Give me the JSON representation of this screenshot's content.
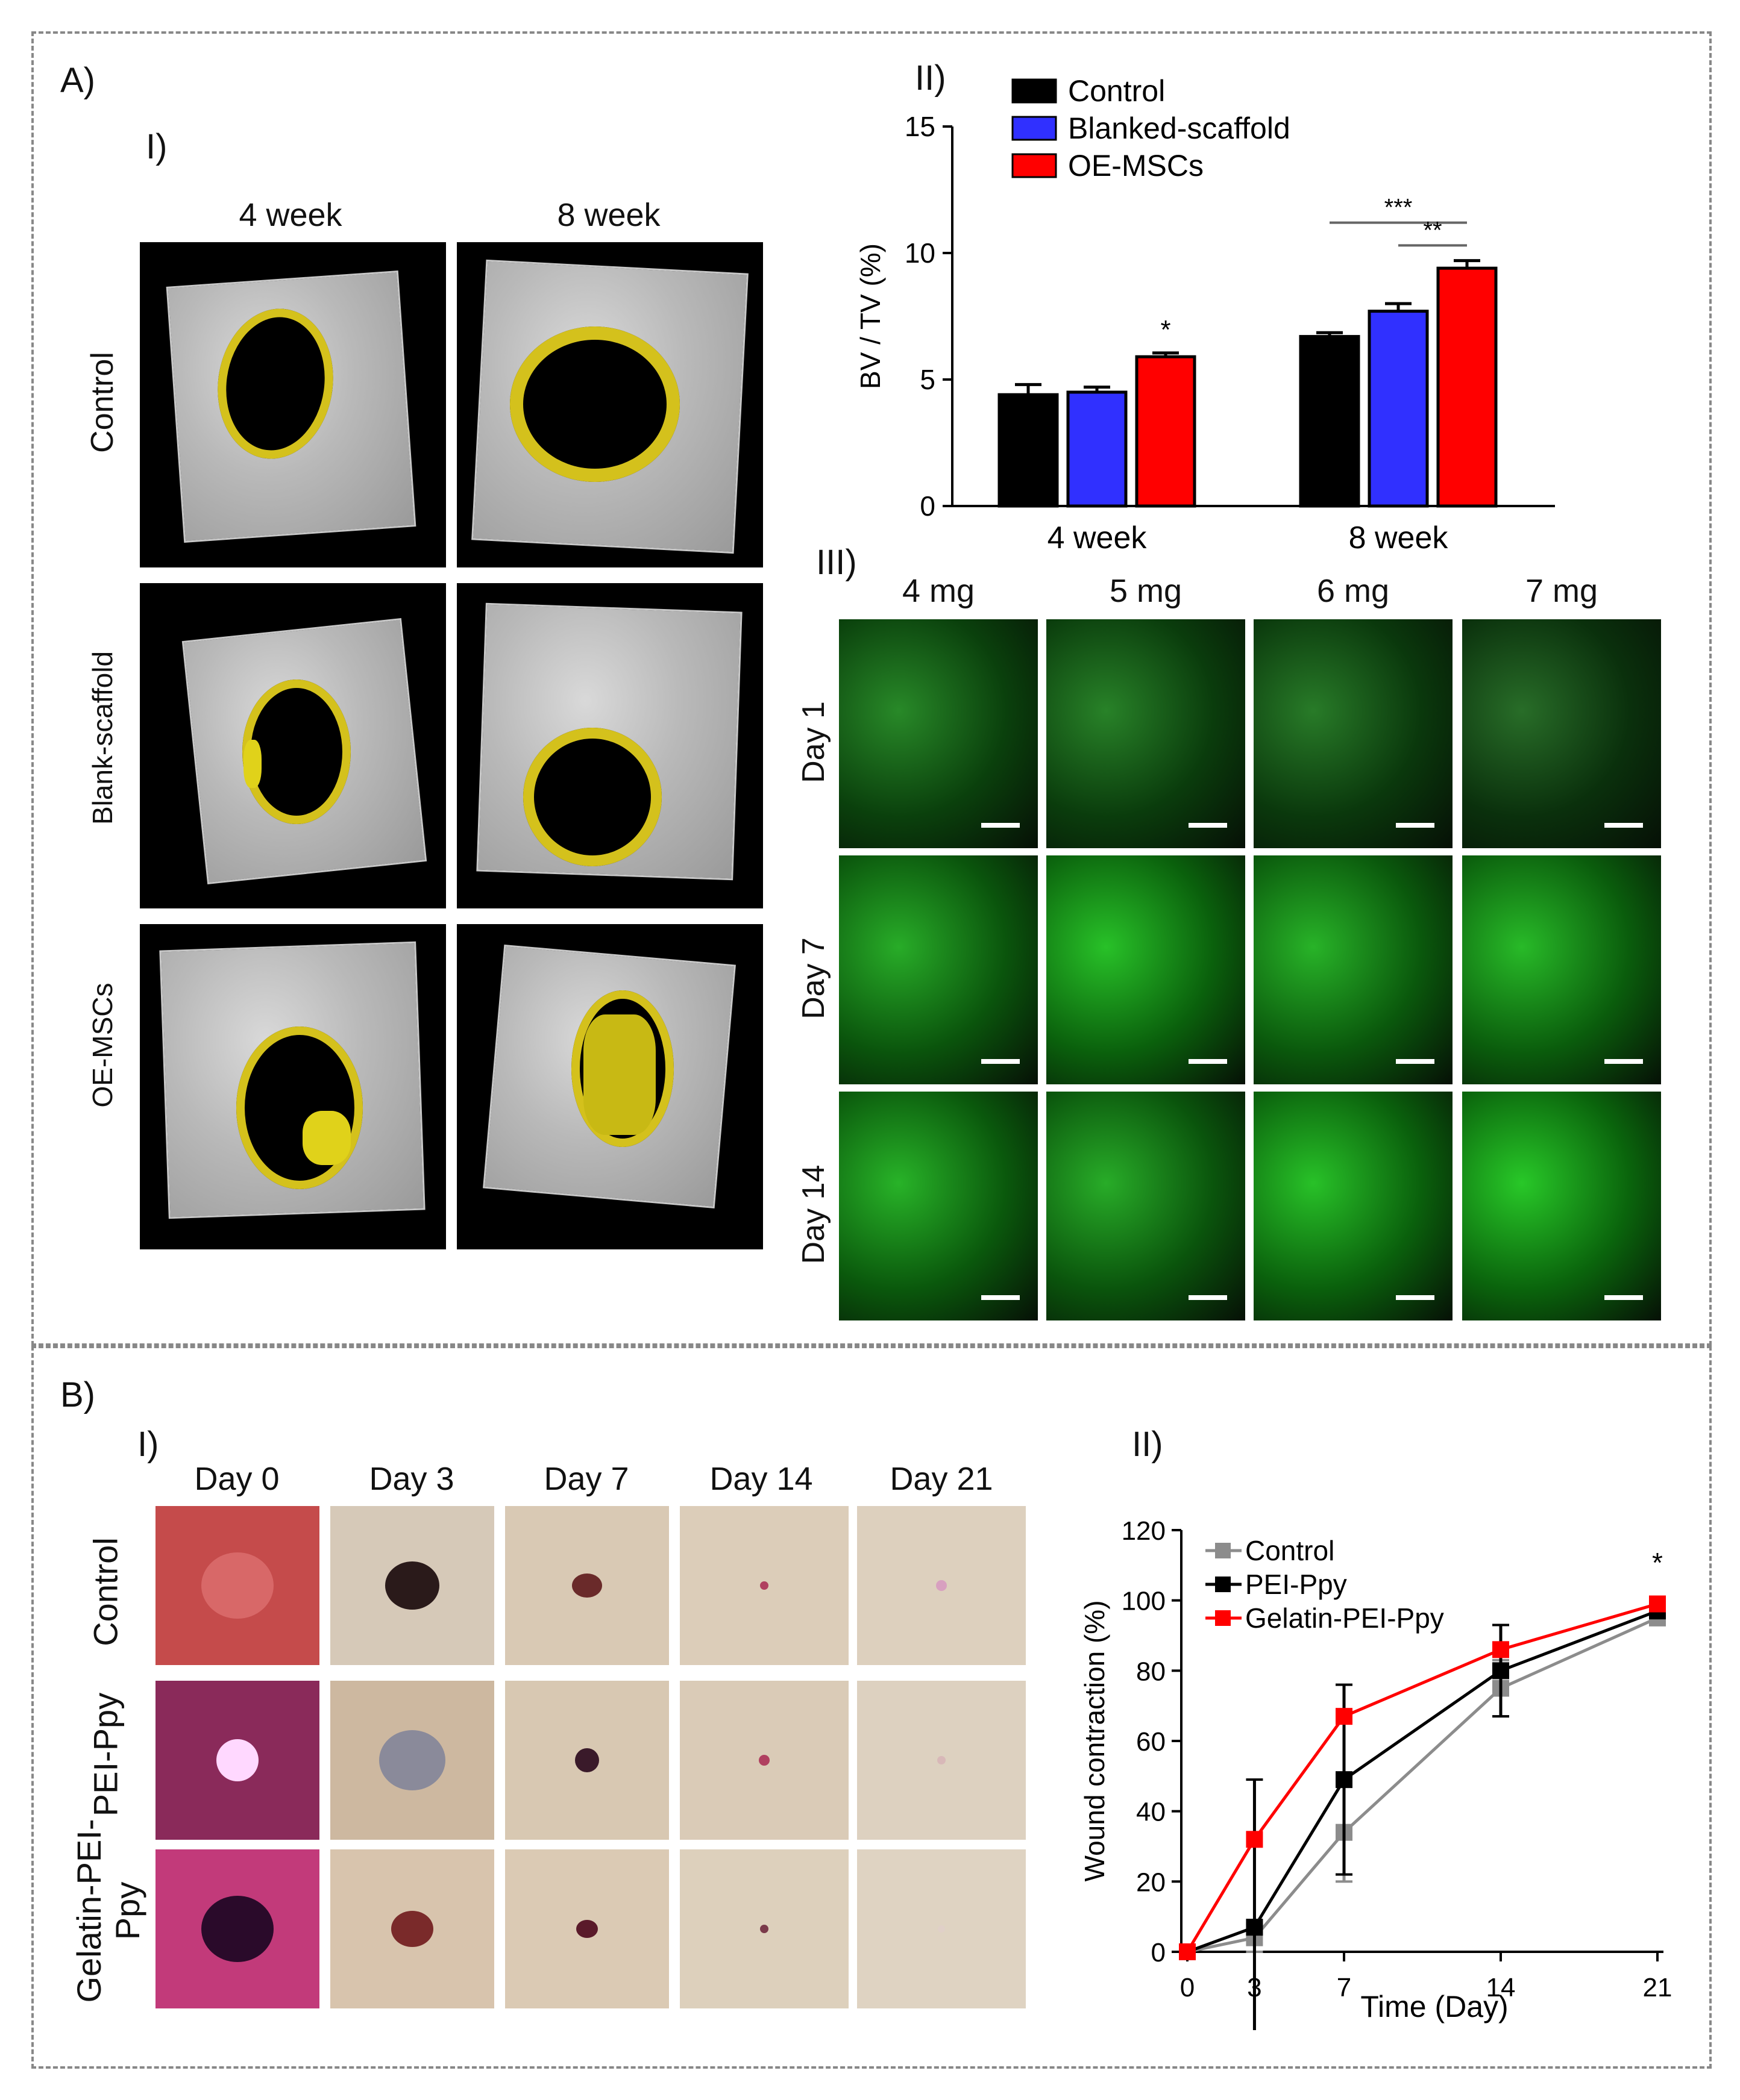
{
  "panel_a": {
    "label": "A)",
    "sub_i": "I)",
    "sub_ii": "II)",
    "sub_iii": "III)",
    "scan_cols": [
      "4 week",
      "8 week"
    ],
    "scan_rows": [
      "Control",
      "Blank-scaffold",
      "OE-MSCs"
    ],
    "fluo_cols": [
      "4 mg",
      "5 mg",
      "6 mg",
      "7 mg"
    ],
    "fluo_rows": [
      "Day 1",
      "Day 7",
      "Day 14"
    ]
  },
  "panel_b": {
    "label": "B)",
    "sub_i": "I)",
    "sub_ii": "II)",
    "photo_cols": [
      "Day 0",
      "Day 3",
      "Day 7",
      "Day 14",
      "Day 21"
    ],
    "photo_rows": [
      "Control",
      "PEI-Ppy",
      "Gelatin-PEI-\nPpy"
    ]
  },
  "colors": {
    "control_bar": "#000000",
    "blank_bar": "#3030ff",
    "oe_bar": "#ff0000",
    "control_line": "#8c8c8c",
    "pei_line": "#000000",
    "gelatin_line": "#ff0000",
    "defect_highlight": "#d4c11c"
  },
  "chart_data": [
    {
      "type": "bar",
      "ylabel": "BV / TV (%)",
      "ylim": [
        0,
        15
      ],
      "yticks": [
        "0",
        "5",
        "10",
        "15"
      ],
      "categories": [
        "4 week",
        "8 week"
      ],
      "series": [
        {
          "name": "Control",
          "values": [
            4.4,
            6.7
          ],
          "errors": [
            0.4,
            0.15
          ],
          "color": "#000000"
        },
        {
          "name": "Blanked-scaffold",
          "values": [
            4.5,
            7.7
          ],
          "errors": [
            0.2,
            0.3
          ],
          "color": "#3030ff"
        },
        {
          "name": "OE-MSCs",
          "values": [
            5.9,
            9.4
          ],
          "errors": [
            0.15,
            0.3
          ],
          "color": "#ff0000"
        }
      ],
      "annotations": [
        {
          "text": "*",
          "category": "4 week",
          "series": "OE-MSCs"
        },
        {
          "text": "***",
          "from": "Control",
          "to": "OE-MSCs",
          "category": "8 week",
          "y": 11.2
        },
        {
          "text": "**",
          "from": "Blanked-scaffold",
          "to": "OE-MSCs",
          "category": "8 week",
          "y": 10.3
        }
      ],
      "legend_position": "top-left"
    },
    {
      "type": "line",
      "xlabel": "Time (Day)",
      "ylabel": "Wound contraction (%)",
      "x": [
        "0",
        "3",
        "7",
        "14",
        "21"
      ],
      "ylim": [
        0,
        120
      ],
      "yticks": [
        "0",
        "20",
        "40",
        "60",
        "80",
        "100",
        "120"
      ],
      "series": [
        {
          "name": "Control",
          "values": [
            0,
            4,
            34,
            75,
            95
          ],
          "errors": [
            0,
            4,
            14,
            8,
            2
          ],
          "color": "#8c8c8c"
        },
        {
          "name": "PEI-Ppy",
          "values": [
            0,
            7,
            49,
            80,
            97
          ],
          "errors": [
            0,
            42,
            27,
            13,
            2
          ],
          "color": "#000000"
        },
        {
          "name": "Gelatin-PEI-Ppy",
          "values": [
            0,
            32,
            67,
            86,
            99
          ],
          "errors": [
            0,
            0,
            0,
            0,
            0
          ],
          "color": "#ff0000"
        }
      ],
      "annotations": [
        {
          "text": "*",
          "x": "21"
        }
      ],
      "legend_position": "top-left"
    }
  ]
}
